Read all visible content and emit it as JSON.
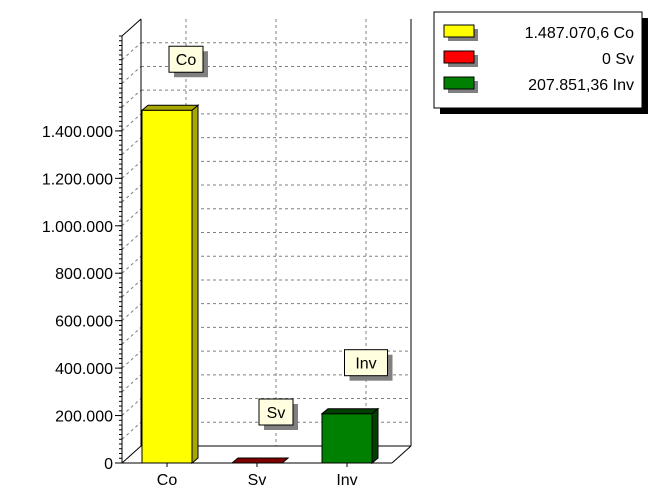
{
  "chart_data": {
    "type": "bar",
    "categories": [
      "Co",
      "Sv",
      "Inv"
    ],
    "values": [
      1487070.6,
      0,
      207851.36
    ],
    "colors": [
      "#ffff00",
      "#ff0000",
      "#008000"
    ],
    "side_colors": [
      "#a8a800",
      "#800000",
      "#004000"
    ],
    "data_labels": [
      "Co",
      "Sv",
      "Inv"
    ],
    "legend": {
      "placement": "top-right",
      "entries": [
        "1.487.070,6 Co",
        "0 Sv",
        "207.851,36 Inv"
      ]
    },
    "yticks": [
      {
        "value": 0,
        "label": "0"
      },
      {
        "value": 200000,
        "label": "200.000"
      },
      {
        "value": 400000,
        "label": "400.000"
      },
      {
        "value": 600000,
        "label": "600.000"
      },
      {
        "value": 800000,
        "label": "800.000"
      },
      {
        "value": 1000000,
        "label": "1.000.000"
      },
      {
        "value": 1200000,
        "label": "1.200.000"
      },
      {
        "value": 1400000,
        "label": "1.400.000"
      }
    ],
    "ylim": [
      0,
      1800000
    ],
    "grid": true,
    "three_d": true
  }
}
